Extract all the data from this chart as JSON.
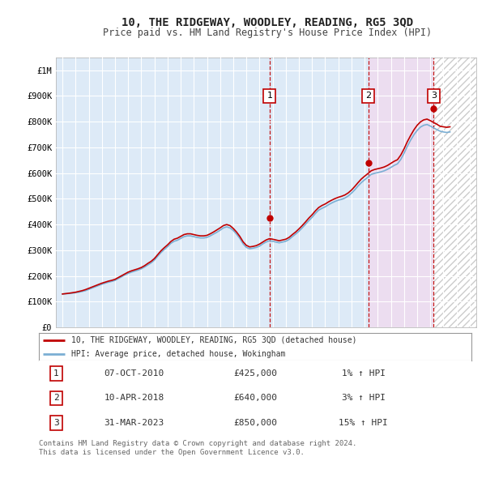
{
  "title": "10, THE RIDGEWAY, WOODLEY, READING, RG5 3QD",
  "subtitle": "Price paid vs. HM Land Registry's House Price Index (HPI)",
  "hpi_line_color": "#7bafd4",
  "price_line_color": "#c00000",
  "sale_marker_color": "#c00000",
  "background_color": "#ffffff",
  "plot_bg_color": "#f5f5f5",
  "grid_color": "#ffffff",
  "shade_color_1": "#ddeaf7",
  "shade_color_2": "#ddeaf7",
  "shade_color_3": "#ecddf0",
  "sales": [
    {
      "num": 1,
      "date": "07-OCT-2010",
      "price": 425000,
      "x_year": 2010.77,
      "hpi_pct": "1%"
    },
    {
      "num": 2,
      "date": "10-APR-2018",
      "price": 640000,
      "x_year": 2018.28,
      "hpi_pct": "3%"
    },
    {
      "num": 3,
      "date": "31-MAR-2023",
      "price": 850000,
      "x_year": 2023.25,
      "hpi_pct": "15%"
    }
  ],
  "xlim": [
    1994.5,
    2026.5
  ],
  "ylim": [
    0,
    1050000
  ],
  "yticks": [
    0,
    100000,
    200000,
    300000,
    400000,
    500000,
    600000,
    700000,
    800000,
    900000,
    1000000
  ],
  "ytick_labels": [
    "£0",
    "£100K",
    "£200K",
    "£300K",
    "£400K",
    "£500K",
    "£600K",
    "£700K",
    "£800K",
    "£900K",
    "£1M"
  ],
  "xticks": [
    1995,
    1996,
    1997,
    1998,
    1999,
    2000,
    2001,
    2002,
    2003,
    2004,
    2005,
    2006,
    2007,
    2008,
    2009,
    2010,
    2011,
    2012,
    2013,
    2014,
    2015,
    2016,
    2017,
    2018,
    2019,
    2020,
    2021,
    2022,
    2023,
    2024,
    2025,
    2026
  ],
  "legend_property_label": "10, THE RIDGEWAY, WOODLEY, READING, RG5 3QD (detached house)",
  "legend_hpi_label": "HPI: Average price, detached house, Wokingham",
  "footer": "Contains HM Land Registry data © Crown copyright and database right 2024.\nThis data is licensed under the Open Government Licence v3.0.",
  "table_rows": [
    {
      "num": 1,
      "date": "07-OCT-2010",
      "price": "£425,000",
      "change": "1% ↑ HPI"
    },
    {
      "num": 2,
      "date": "10-APR-2018",
      "price": "£640,000",
      "change": "3% ↑ HPI"
    },
    {
      "num": 3,
      "date": "31-MAR-2023",
      "price": "£850,000",
      "change": "15% ↑ HPI"
    }
  ],
  "hpi_data_x": [
    1995.0,
    1995.25,
    1995.5,
    1995.75,
    1996.0,
    1996.25,
    1996.5,
    1996.75,
    1997.0,
    1997.25,
    1997.5,
    1997.75,
    1998.0,
    1998.25,
    1998.5,
    1998.75,
    1999.0,
    1999.25,
    1999.5,
    1999.75,
    2000.0,
    2000.25,
    2000.5,
    2000.75,
    2001.0,
    2001.25,
    2001.5,
    2001.75,
    2002.0,
    2002.25,
    2002.5,
    2002.75,
    2003.0,
    2003.25,
    2003.5,
    2003.75,
    2004.0,
    2004.25,
    2004.5,
    2004.75,
    2005.0,
    2005.25,
    2005.5,
    2005.75,
    2006.0,
    2006.25,
    2006.5,
    2006.75,
    2007.0,
    2007.25,
    2007.5,
    2007.75,
    2008.0,
    2008.25,
    2008.5,
    2008.75,
    2009.0,
    2009.25,
    2009.5,
    2009.75,
    2010.0,
    2010.25,
    2010.5,
    2010.75,
    2011.0,
    2011.25,
    2011.5,
    2011.75,
    2012.0,
    2012.25,
    2012.5,
    2012.75,
    2013.0,
    2013.25,
    2013.5,
    2013.75,
    2014.0,
    2014.25,
    2014.5,
    2014.75,
    2015.0,
    2015.25,
    2015.5,
    2015.75,
    2016.0,
    2016.25,
    2016.5,
    2016.75,
    2017.0,
    2017.25,
    2017.5,
    2017.75,
    2018.0,
    2018.25,
    2018.5,
    2018.75,
    2019.0,
    2019.25,
    2019.5,
    2019.75,
    2020.0,
    2020.25,
    2020.5,
    2020.75,
    2021.0,
    2021.25,
    2021.5,
    2021.75,
    2022.0,
    2022.25,
    2022.5,
    2022.75,
    2023.0,
    2023.25,
    2023.5,
    2023.75,
    2024.0,
    2024.25,
    2024.5
  ],
  "hpi_data_y": [
    130000,
    131000,
    132000,
    133000,
    135000,
    137000,
    140000,
    143000,
    148000,
    153000,
    158000,
    163000,
    168000,
    172000,
    176000,
    179000,
    183000,
    190000,
    197000,
    204000,
    210000,
    215000,
    219000,
    223000,
    228000,
    235000,
    243000,
    251000,
    262000,
    277000,
    291000,
    303000,
    314000,
    327000,
    335000,
    339000,
    346000,
    353000,
    356000,
    356000,
    353000,
    350000,
    348000,
    348000,
    350000,
    356000,
    363000,
    370000,
    378000,
    387000,
    391000,
    387000,
    377000,
    363000,
    346000,
    325000,
    311000,
    306000,
    308000,
    311000,
    316000,
    325000,
    332000,
    337000,
    335000,
    332000,
    329000,
    332000,
    335000,
    342000,
    353000,
    363000,
    374000,
    387000,
    401000,
    415000,
    428000,
    443000,
    456000,
    463000,
    469000,
    477000,
    484000,
    490000,
    495000,
    498000,
    503000,
    511000,
    522000,
    535000,
    550000,
    563000,
    574000,
    584000,
    595000,
    599000,
    602000,
    605000,
    609000,
    615000,
    622000,
    630000,
    636000,
    653000,
    677000,
    704000,
    728000,
    749000,
    766000,
    779000,
    786000,
    789000,
    783000,
    776000,
    769000,
    763000,
    760000,
    758000,
    760000
  ],
  "price_data_x": [
    1995.0,
    1995.25,
    1995.5,
    1995.75,
    1996.0,
    1996.25,
    1996.5,
    1996.75,
    1997.0,
    1997.25,
    1997.5,
    1997.75,
    1998.0,
    1998.25,
    1998.5,
    1998.75,
    1999.0,
    1999.25,
    1999.5,
    1999.75,
    2000.0,
    2000.25,
    2000.5,
    2000.75,
    2001.0,
    2001.25,
    2001.5,
    2001.75,
    2002.0,
    2002.25,
    2002.5,
    2002.75,
    2003.0,
    2003.25,
    2003.5,
    2003.75,
    2004.0,
    2004.25,
    2004.5,
    2004.75,
    2005.0,
    2005.25,
    2005.5,
    2005.75,
    2006.0,
    2006.25,
    2006.5,
    2006.75,
    2007.0,
    2007.25,
    2007.5,
    2007.75,
    2008.0,
    2008.25,
    2008.5,
    2008.75,
    2009.0,
    2009.25,
    2009.5,
    2009.75,
    2010.0,
    2010.25,
    2010.5,
    2010.75,
    2011.0,
    2011.25,
    2011.5,
    2011.75,
    2012.0,
    2012.25,
    2012.5,
    2012.75,
    2013.0,
    2013.25,
    2013.5,
    2013.75,
    2014.0,
    2014.25,
    2014.5,
    2014.75,
    2015.0,
    2015.25,
    2015.5,
    2015.75,
    2016.0,
    2016.25,
    2016.5,
    2016.75,
    2017.0,
    2017.25,
    2017.5,
    2017.75,
    2018.0,
    2018.25,
    2018.5,
    2018.75,
    2019.0,
    2019.25,
    2019.5,
    2019.75,
    2020.0,
    2020.25,
    2020.5,
    2020.75,
    2021.0,
    2021.25,
    2021.5,
    2021.75,
    2022.0,
    2022.25,
    2022.5,
    2022.75,
    2023.0,
    2023.25,
    2023.5,
    2023.75,
    2024.0,
    2024.25,
    2024.5
  ],
  "price_data_y": [
    130000,
    131500,
    133000,
    135000,
    137000,
    140000,
    143000,
    147000,
    152000,
    157000,
    162000,
    167000,
    172000,
    176000,
    180000,
    183000,
    187000,
    194000,
    201000,
    208000,
    215000,
    220000,
    224000,
    228000,
    233000,
    240000,
    249000,
    257000,
    268000,
    283000,
    298000,
    310000,
    321000,
    334000,
    343000,
    347000,
    354000,
    361000,
    364000,
    364000,
    361000,
    358000,
    356000,
    356000,
    358000,
    364000,
    371000,
    379000,
    387000,
    396000,
    400000,
    396000,
    385000,
    371000,
    354000,
    333000,
    319000,
    313000,
    315000,
    318000,
    324000,
    332000,
    340000,
    345000,
    343000,
    340000,
    337000,
    340000,
    343000,
    350000,
    361000,
    371000,
    383000,
    396000,
    410000,
    425000,
    438000,
    453000,
    466000,
    474000,
    480000,
    488000,
    495000,
    501000,
    506000,
    510000,
    515000,
    523000,
    534000,
    548000,
    563000,
    577000,
    588000,
    598000,
    609000,
    614000,
    617000,
    620000,
    624000,
    630000,
    638000,
    646000,
    652000,
    670000,
    694000,
    722000,
    746000,
    768000,
    786000,
    799000,
    807000,
    810000,
    804000,
    797000,
    790000,
    782000,
    780000,
    778000,
    780000
  ]
}
